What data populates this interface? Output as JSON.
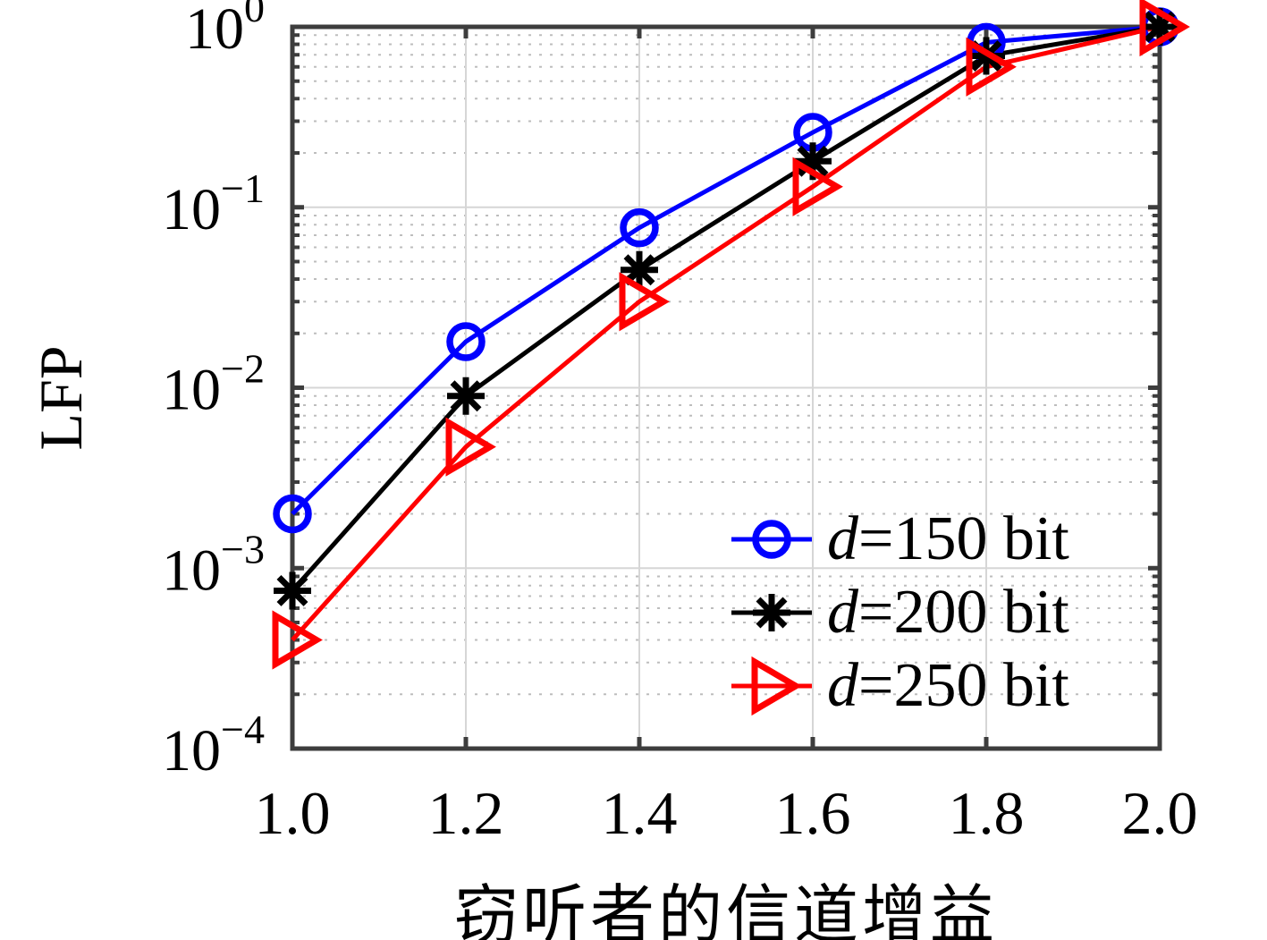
{
  "figure": {
    "background": "#ffffff",
    "axis_color": "#3d3d3d",
    "grid_major_color": "#d6d6d6",
    "grid_minor_color": "#bdbdbd",
    "text_color": "#000000"
  },
  "chart_data": {
    "type": "line",
    "title": "",
    "xlabel": "窃听者的信道增益",
    "ylabel": "LFP",
    "x_scale": "linear",
    "y_scale": "log",
    "xlim": [
      1.0,
      2.0
    ],
    "ylim": [
      0.0001,
      1.0
    ],
    "x_ticks": [
      1.0,
      1.2,
      1.4,
      1.6,
      1.8,
      2.0
    ],
    "x_tick_labels": [
      "1.0",
      "1.2",
      "1.4",
      "1.6",
      "1.8",
      "2.0"
    ],
    "y_tick_exponents": [
      0,
      -1,
      -2,
      -3,
      -4
    ],
    "grid": "major solid gray; log minor dotted",
    "legend_position": "inside lower-right, no box",
    "x": [
      1.0,
      1.2,
      1.4,
      1.6,
      1.8,
      2.0
    ],
    "series": [
      {
        "name": "d=150 bit",
        "color": "#0000ff",
        "marker": "circle",
        "values": [
          0.002,
          0.018,
          0.077,
          0.26,
          0.82,
          1.0
        ]
      },
      {
        "name": "d=200 bit",
        "color": "#000000",
        "marker": "asterisk",
        "values": [
          0.00075,
          0.009,
          0.045,
          0.18,
          0.69,
          1.0
        ]
      },
      {
        "name": "d=250 bit",
        "color": "#ff0000",
        "marker": "triangle-right",
        "values": [
          0.0004,
          0.0047,
          0.03,
          0.13,
          0.6,
          1.0
        ]
      }
    ]
  },
  "legend": {
    "items": [
      {
        "var": "d",
        "rest": "=150 bit",
        "label": "d=150 bit"
      },
      {
        "var": "d",
        "rest": "=200 bit",
        "label": "d=200 bit"
      },
      {
        "var": "d",
        "rest": "=250 bit",
        "label": "d=250 bit"
      }
    ]
  }
}
